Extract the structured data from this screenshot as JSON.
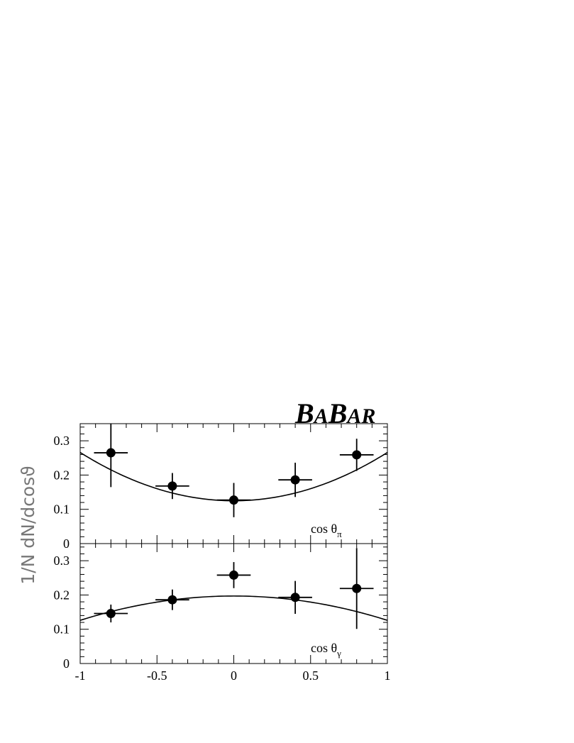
{
  "logo": {
    "text": "BaBar",
    "big1": "B",
    "small1": "A",
    "big2": "B",
    "small2": "AR"
  },
  "ylabel": "1/N dN/dcosϑ",
  "chart_data": [
    {
      "type": "scatter",
      "panel": "top",
      "xlabel": "cos θπ",
      "xlabel_main": "cos θ",
      "xlabel_sub": "π",
      "xlim": [
        -1,
        1
      ],
      "ylim": [
        0,
        0.35
      ],
      "yticks": [
        0,
        0.1,
        0.2,
        0.3
      ],
      "ytick_labels": [
        "0",
        "0.1",
        "0.2",
        "0.3"
      ],
      "points": [
        {
          "x": -0.8,
          "y": 0.265,
          "xerr": 0.11,
          "yerr": 0.1
        },
        {
          "x": -0.4,
          "y": 0.168,
          "xerr": 0.11,
          "yerr": 0.038
        },
        {
          "x": 0.0,
          "y": 0.127,
          "xerr": 0.11,
          "yerr": 0.05
        },
        {
          "x": 0.4,
          "y": 0.186,
          "xerr": 0.11,
          "yerr": 0.05
        },
        {
          "x": 0.8,
          "y": 0.259,
          "xerr": 0.11,
          "yerr": 0.047
        }
      ],
      "fit": {
        "form": "a + b*x^2",
        "a": 0.125,
        "b": 0.141
      }
    },
    {
      "type": "scatter",
      "panel": "bottom",
      "xlabel": "cos θγ",
      "xlabel_main": "cos θ",
      "xlabel_sub": "γ",
      "xlim": [
        -1,
        1
      ],
      "ylim": [
        0,
        0.35
      ],
      "yticks": [
        0,
        0.1,
        0.2,
        0.3
      ],
      "ytick_labels": [
        "0",
        "0.1",
        "0.2",
        "0.3"
      ],
      "xticks": [
        -1,
        -0.5,
        0,
        0.5,
        1
      ],
      "xtick_labels": [
        "-1",
        "-0.5",
        "0",
        "0.5",
        "1"
      ],
      "points": [
        {
          "x": -0.8,
          "y": 0.146,
          "xerr": 0.11,
          "yerr": 0.026
        },
        {
          "x": -0.4,
          "y": 0.186,
          "xerr": 0.11,
          "yerr": 0.03
        },
        {
          "x": 0.0,
          "y": 0.258,
          "xerr": 0.11,
          "yerr": 0.038
        },
        {
          "x": 0.4,
          "y": 0.193,
          "xerr": 0.11,
          "yerr": 0.048
        },
        {
          "x": 0.8,
          "y": 0.219,
          "xerr": 0.11,
          "yerr": 0.118
        }
      ],
      "fit": {
        "form": "a + b*x^2",
        "a": 0.197,
        "b": -0.071
      }
    }
  ]
}
